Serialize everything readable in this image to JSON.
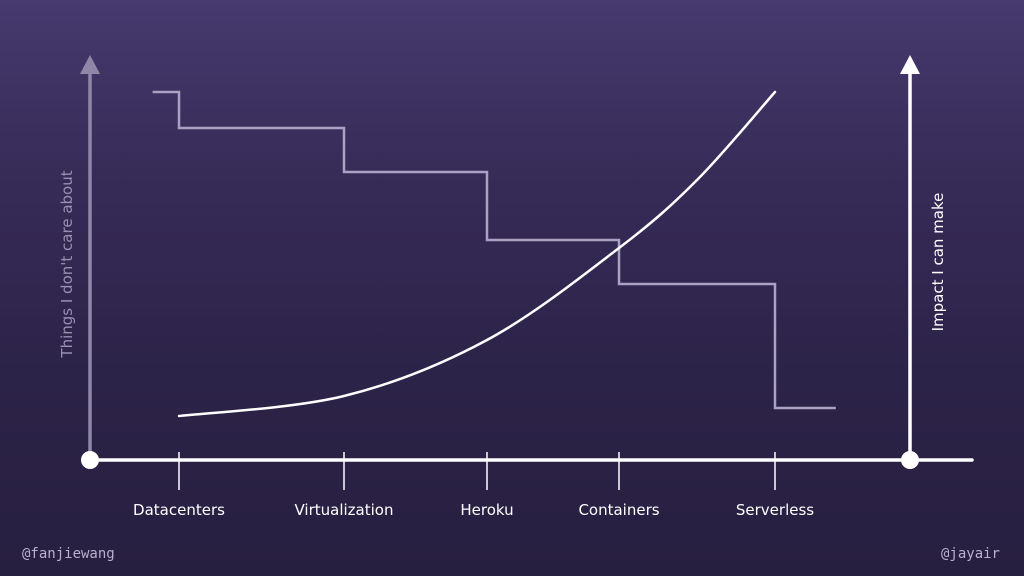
{
  "handles": {
    "left": "@fanjiewang",
    "right": "@jayair"
  },
  "colors": {
    "background_top": "#463a6e",
    "background_bottom": "#271f40",
    "step_line": "#aaa2c2",
    "curve_line": "#ffffff",
    "left_axis": "#8e87a8",
    "right_axis": "#ffffff",
    "x_axis": "#ffffff"
  },
  "chart_data": {
    "type": "line",
    "categories": [
      "Datacenters",
      "Virtualization",
      "Heroku",
      "Containers",
      "Serverless"
    ],
    "left_axis_label": "Things I don't care about",
    "right_axis_label": "Impact I can make",
    "grid": false,
    "legend": "none",
    "ylim": [
      0,
      100
    ],
    "series": [
      {
        "axis": "left",
        "style": "step",
        "x": [
          -0.4,
          0,
          1,
          2,
          3,
          4,
          4.4
        ],
        "values": [
          92,
          83,
          72,
          55,
          44,
          13,
          13
        ]
      },
      {
        "axis": "right",
        "style": "curve",
        "x": [
          0,
          1,
          2,
          3,
          3.5,
          4
        ],
        "values": [
          11,
          16,
          30,
          53,
          70,
          92
        ]
      }
    ]
  }
}
